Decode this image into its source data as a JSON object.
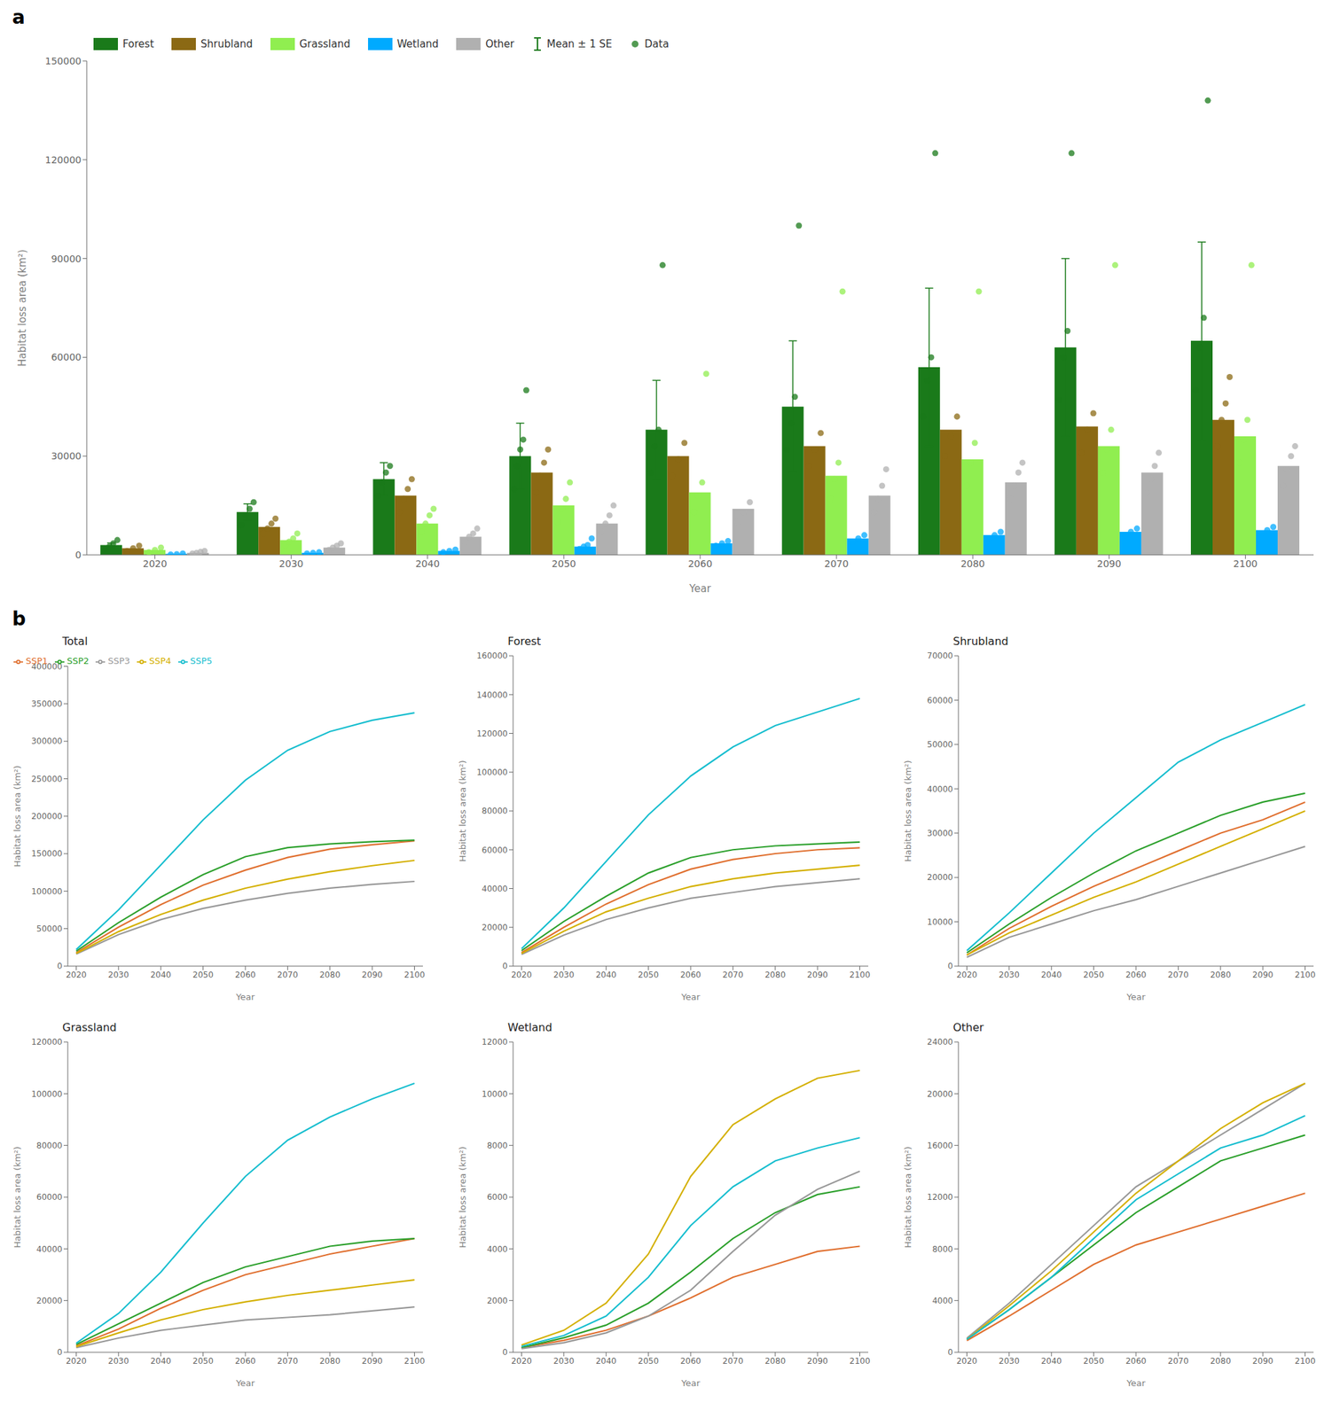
{
  "chart_data": [
    {
      "type": "bar",
      "title": "a",
      "xlabel": "Year",
      "ylabel": "Habitat loss area (km²)",
      "categories": [
        "2020",
        "2030",
        "2040",
        "2050",
        "2060",
        "2070",
        "2080",
        "2090",
        "2100"
      ],
      "ylim": [
        0,
        150000
      ],
      "yticks": [
        0,
        30000,
        60000,
        90000,
        120000,
        150000
      ],
      "grid": false,
      "legend": "upper left",
      "points_name": "Data",
      "series": [
        {
          "name": "Forest",
          "color": "#1a7a1a",
          "values": [
            3000,
            13000,
            23000,
            30000,
            38000,
            45000,
            57000,
            63000,
            65000
          ],
          "error_bars": {
            "name": "Mean ± 1 SE",
            "values": [
              600,
              2500,
              5000,
              10000,
              15000,
              20000,
              24000,
              27000,
              30000
            ]
          },
          "points": [
            [
              1500,
              2500,
              3500,
              4500
            ],
            [
              9000,
              12000,
              14000,
              16000
            ],
            [
              18000,
              22000,
              25000,
              27000
            ],
            [
              20000,
              27000,
              32000,
              35000,
              50000
            ],
            [
              25000,
              33000,
              38000,
              88000
            ],
            [
              32000,
              40000,
              48000,
              100000
            ],
            [
              42000,
              53000,
              60000,
              122000
            ],
            [
              47000,
              60000,
              68000,
              122000
            ],
            [
              50000,
              63000,
              72000,
              138000
            ]
          ]
        },
        {
          "name": "Shrubland",
          "color": "#8b6914",
          "values": [
            2000,
            8500,
            18000,
            25000,
            30000,
            33000,
            38000,
            39000,
            41000
          ],
          "points": [
            [
              1200,
              2000,
              2800
            ],
            [
              6500,
              8000,
              9500,
              11000
            ],
            [
              13000,
              17000,
              20000,
              23000
            ],
            [
              19000,
              24000,
              28000,
              32000
            ],
            [
              24000,
              29000,
              34000
            ],
            [
              27000,
              32000,
              37000
            ],
            [
              30000,
              36000,
              42000
            ],
            [
              31000,
              38000,
              43000
            ],
            [
              33000,
              41000,
              46000,
              54000
            ]
          ]
        },
        {
          "name": "Grassland",
          "color": "#90ee50",
          "values": [
            1500,
            4500,
            9500,
            15000,
            19000,
            24000,
            29000,
            33000,
            36000
          ],
          "points": [
            [
              800,
              1500,
              2200
            ],
            [
              3000,
              4000,
              5000,
              6500
            ],
            [
              7000,
              9500,
              12000,
              14000
            ],
            [
              10000,
              14000,
              17000,
              22000
            ],
            [
              13000,
              18000,
              22000,
              55000
            ],
            [
              17000,
              23000,
              28000,
              80000
            ],
            [
              21000,
              28000,
              34000,
              80000
            ],
            [
              25000,
              32000,
              38000,
              88000
            ],
            [
              28000,
              35000,
              41000,
              88000
            ]
          ]
        },
        {
          "name": "Wetland",
          "color": "#00aaff",
          "values": [
            300,
            600,
            1200,
            2500,
            3500,
            5000,
            6000,
            7000,
            7500
          ],
          "points": [
            [
              100,
              200,
              400
            ],
            [
              400,
              600,
              800
            ],
            [
              800,
              1200,
              1600
            ],
            [
              1800,
              2500,
              3000,
              5000
            ],
            [
              2800,
              3500,
              4200
            ],
            [
              4000,
              5000,
              6000
            ],
            [
              5000,
              6000,
              7000
            ],
            [
              6000,
              7000,
              8000
            ],
            [
              6500,
              7500,
              8500
            ]
          ]
        },
        {
          "name": "Other",
          "color": "#b0b0b0",
          "values": [
            600,
            2200,
            5500,
            9500,
            14000,
            18000,
            22000,
            25000,
            27000
          ],
          "points": [
            [
              400,
              600,
              900,
              1200
            ],
            [
              1500,
              2200,
              2800,
              3500
            ],
            [
              4000,
              5500,
              6500,
              8000
            ],
            [
              7000,
              9500,
              12000,
              15000
            ],
            [
              10000,
              13000,
              16000
            ],
            [
              13000,
              17000,
              21000,
              26000
            ],
            [
              17000,
              21000,
              25000,
              28000
            ],
            [
              19000,
              23000,
              27000,
              31000
            ],
            [
              21000,
              26000,
              30000,
              33000
            ]
          ]
        }
      ]
    },
    {
      "type": "line",
      "title": "Total",
      "annotations": [
        "b"
      ],
      "xlabel": "Year",
      "ylabel": "Habitat loss area (km²)",
      "x": [
        2020,
        2030,
        2040,
        2050,
        2060,
        2070,
        2080,
        2090,
        2100
      ],
      "xlim": [
        2018,
        2102
      ],
      "xticks": [
        2020,
        2030,
        2040,
        2050,
        2060,
        2070,
        2080,
        2090,
        2100
      ],
      "ylim": [
        0,
        400000
      ],
      "yticks": [
        0,
        50000,
        100000,
        150000,
        200000,
        250000,
        300000,
        350000,
        400000
      ],
      "grid": false,
      "legend": "upper left",
      "series": [
        {
          "name": "SSP1",
          "color": "#e07030",
          "values": [
            18000,
            52000,
            82000,
            108000,
            128000,
            145000,
            156000,
            162000,
            167000
          ]
        },
        {
          "name": "SSP2",
          "color": "#2ca02c",
          "values": [
            20000,
            58000,
            92000,
            122000,
            146000,
            158000,
            163000,
            166000,
            168000
          ]
        },
        {
          "name": "SSP3",
          "color": "#999999",
          "values": [
            16000,
            42000,
            62000,
            77000,
            88000,
            97000,
            104000,
            109000,
            113000
          ]
        },
        {
          "name": "SSP4",
          "color": "#d4b000",
          "values": [
            17000,
            46000,
            69000,
            88000,
            104000,
            116000,
            126000,
            134000,
            141000
          ]
        },
        {
          "name": "SSP5",
          "color": "#17becf",
          "values": [
            22000,
            75000,
            135000,
            195000,
            248000,
            288000,
            313000,
            328000,
            338000
          ]
        }
      ]
    },
    {
      "type": "line",
      "title": "Forest",
      "xlabel": "Year",
      "ylabel": "Habitat loss area (km²)",
      "x": [
        2020,
        2030,
        2040,
        2050,
        2060,
        2070,
        2080,
        2090,
        2100
      ],
      "xlim": [
        2018,
        2102
      ],
      "xticks": [
        2020,
        2030,
        2040,
        2050,
        2060,
        2070,
        2080,
        2090,
        2100
      ],
      "ylim": [
        0,
        160000
      ],
      "yticks": [
        0,
        20000,
        40000,
        60000,
        80000,
        100000,
        120000,
        140000,
        160000
      ],
      "grid": false,
      "series": [
        {
          "name": "SSP1",
          "color": "#e07030",
          "values": [
            7000,
            20000,
            32000,
            42000,
            50000,
            55000,
            58000,
            60000,
            61000
          ]
        },
        {
          "name": "SSP2",
          "color": "#2ca02c",
          "values": [
            8000,
            23000,
            36000,
            48000,
            56000,
            60000,
            62000,
            63000,
            64000
          ]
        },
        {
          "name": "SSP3",
          "color": "#999999",
          "values": [
            6000,
            16000,
            24000,
            30000,
            35000,
            38000,
            41000,
            43000,
            45000
          ]
        },
        {
          "name": "SSP4",
          "color": "#d4b000",
          "values": [
            6500,
            18000,
            28000,
            35000,
            41000,
            45000,
            48000,
            50000,
            52000
          ]
        },
        {
          "name": "SSP5",
          "color": "#17becf",
          "values": [
            9000,
            30000,
            54000,
            78000,
            98000,
            113000,
            124000,
            131000,
            138000
          ]
        }
      ]
    },
    {
      "type": "line",
      "title": "Shrubland",
      "xlabel": "Year",
      "ylabel": "Habitat loss area (km²)",
      "x": [
        2020,
        2030,
        2040,
        2050,
        2060,
        2070,
        2080,
        2090,
        2100
      ],
      "xlim": [
        2018,
        2102
      ],
      "xticks": [
        2020,
        2030,
        2040,
        2050,
        2060,
        2070,
        2080,
        2090,
        2100
      ],
      "ylim": [
        0,
        70000
      ],
      "yticks": [
        0,
        10000,
        20000,
        30000,
        40000,
        50000,
        60000,
        70000
      ],
      "grid": false,
      "series": [
        {
          "name": "SSP1",
          "color": "#e07030",
          "values": [
            2500,
            8500,
            13500,
            18000,
            22000,
            26000,
            30000,
            33000,
            37000
          ]
        },
        {
          "name": "SSP2",
          "color": "#2ca02c",
          "values": [
            3000,
            9500,
            15500,
            21000,
            26000,
            30000,
            34000,
            37000,
            39000
          ]
        },
        {
          "name": "SSP3",
          "color": "#999999",
          "values": [
            2000,
            6500,
            9500,
            12500,
            15000,
            18000,
            21000,
            24000,
            27000
          ]
        },
        {
          "name": "SSP4",
          "color": "#d4b000",
          "values": [
            2500,
            7500,
            11500,
            15500,
            19000,
            23000,
            27000,
            31000,
            35000
          ]
        },
        {
          "name": "SSP5",
          "color": "#17becf",
          "values": [
            3500,
            12000,
            21000,
            30000,
            38000,
            46000,
            51000,
            55000,
            59000
          ]
        }
      ]
    },
    {
      "type": "line",
      "title": "Grassland",
      "xlabel": "Year",
      "ylabel": "Habitat loss area (km²)",
      "x": [
        2020,
        2030,
        2040,
        2050,
        2060,
        2070,
        2080,
        2090,
        2100
      ],
      "xlim": [
        2018,
        2102
      ],
      "xticks": [
        2020,
        2030,
        2040,
        2050,
        2060,
        2070,
        2080,
        2090,
        2100
      ],
      "ylim": [
        0,
        120000
      ],
      "yticks": [
        0,
        20000,
        40000,
        60000,
        80000,
        100000,
        120000
      ],
      "grid": false,
      "series": [
        {
          "name": "SSP1",
          "color": "#e07030",
          "values": [
            2500,
            9000,
            17000,
            24000,
            30000,
            34000,
            38000,
            41000,
            44000
          ]
        },
        {
          "name": "SSP2",
          "color": "#2ca02c",
          "values": [
            3000,
            11000,
            19000,
            27000,
            33000,
            37000,
            41000,
            43000,
            44000
          ]
        },
        {
          "name": "SSP3",
          "color": "#999999",
          "values": [
            1800,
            5500,
            8500,
            10500,
            12500,
            13500,
            14500,
            16000,
            17500
          ]
        },
        {
          "name": "SSP4",
          "color": "#d4b000",
          "values": [
            2200,
            7500,
            12500,
            16500,
            19500,
            22000,
            24000,
            26000,
            28000
          ]
        },
        {
          "name": "SSP5",
          "color": "#17becf",
          "values": [
            3500,
            15000,
            31000,
            50000,
            68000,
            82000,
            91000,
            98000,
            104000
          ]
        }
      ]
    },
    {
      "type": "line",
      "title": "Wetland",
      "xlabel": "Year",
      "ylabel": "Habitat loss area (km²)",
      "x": [
        2020,
        2030,
        2040,
        2050,
        2060,
        2070,
        2080,
        2090,
        2100
      ],
      "xlim": [
        2018,
        2102
      ],
      "xticks": [
        2020,
        2030,
        2040,
        2050,
        2060,
        2070,
        2080,
        2090,
        2100
      ],
      "ylim": [
        0,
        12000
      ],
      "yticks": [
        0,
        2000,
        4000,
        6000,
        8000,
        10000,
        12000
      ],
      "grid": false,
      "series": [
        {
          "name": "SSP1",
          "color": "#e07030",
          "values": [
            180,
            460,
            850,
            1400,
            2100,
            2900,
            3400,
            3900,
            4100
          ]
        },
        {
          "name": "SSP2",
          "color": "#2ca02c",
          "values": [
            180,
            560,
            1050,
            1900,
            3100,
            4400,
            5400,
            6100,
            6400
          ]
        },
        {
          "name": "SSP3",
          "color": "#999999",
          "values": [
            140,
            370,
            750,
            1400,
            2400,
            3900,
            5300,
            6300,
            7000
          ]
        },
        {
          "name": "SSP4",
          "color": "#d4b000",
          "values": [
            280,
            850,
            1900,
            3800,
            6800,
            8800,
            9800,
            10600,
            10900
          ]
        },
        {
          "name": "SSP5",
          "color": "#17becf",
          "values": [
            230,
            650,
            1400,
            2900,
            4900,
            6400,
            7400,
            7900,
            8300
          ]
        }
      ]
    },
    {
      "type": "line",
      "title": "Other",
      "xlabel": "Year",
      "ylabel": "Habitat loss area (km²)",
      "x": [
        2020,
        2030,
        2040,
        2050,
        2060,
        2070,
        2080,
        2090,
        2100
      ],
      "xlim": [
        2018,
        2102
      ],
      "xticks": [
        2020,
        2030,
        2040,
        2050,
        2060,
        2070,
        2080,
        2090,
        2100
      ],
      "ylim": [
        0,
        24000
      ],
      "yticks": [
        0,
        4000,
        8000,
        12000,
        16000,
        20000,
        24000
      ],
      "grid": false,
      "series": [
        {
          "name": "SSP1",
          "color": "#e07030",
          "values": [
            900,
            2800,
            4800,
            6800,
            8300,
            9300,
            10300,
            11300,
            12300
          ]
        },
        {
          "name": "SSP2",
          "color": "#2ca02c",
          "values": [
            1000,
            3300,
            5800,
            8300,
            10800,
            12800,
            14800,
            15800,
            16800
          ]
        },
        {
          "name": "SSP3",
          "color": "#999999",
          "values": [
            1100,
            3800,
            6800,
            9800,
            12800,
            14800,
            16800,
            18800,
            20800
          ]
        },
        {
          "name": "SSP4",
          "color": "#d4b000",
          "values": [
            1000,
            3600,
            6300,
            9300,
            12300,
            14800,
            17300,
            19300,
            20800
          ]
        },
        {
          "name": "SSP5",
          "color": "#17becf",
          "values": [
            1000,
            3300,
            5800,
            8800,
            11800,
            13800,
            15800,
            16800,
            18300
          ]
        }
      ]
    }
  ]
}
